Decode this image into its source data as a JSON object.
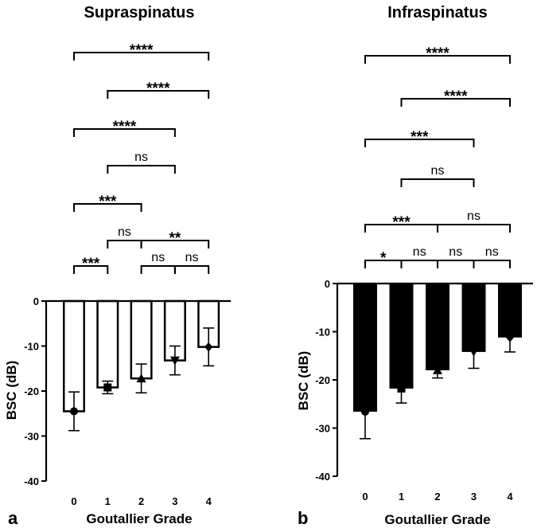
{
  "chart_data": [
    {
      "panel_label": "a",
      "type": "bar",
      "title": "Supraspinatus",
      "xlabel": "Goutallier Grade",
      "ylabel": "BSC (dB)",
      "categories": [
        "0",
        "1",
        "2",
        "3",
        "4"
      ],
      "values": [
        -24.5,
        -19.2,
        -17.2,
        -13.2,
        -10.2
      ],
      "error": [
        4.3,
        1.4,
        3.2,
        3.2,
        4.2
      ],
      "markers": [
        "circle",
        "square",
        "triangle",
        "triangle-down",
        "diamond"
      ],
      "yticks": [
        "0",
        "-10",
        "-20",
        "-30",
        "-40"
      ],
      "ylim": [
        -40,
        0
      ],
      "bar_fill": "#ffffff",
      "bar_stroke": "#000000",
      "comparisons": [
        {
          "groups": [
            0,
            1
          ],
          "level": 1,
          "label": "***"
        },
        {
          "groups": [
            2,
            3
          ],
          "level": 1,
          "label": "ns"
        },
        {
          "groups": [
            3,
            4
          ],
          "level": 1,
          "label": "ns"
        },
        {
          "groups": [
            1,
            2
          ],
          "level": 2,
          "label": "ns"
        },
        {
          "groups": [
            2,
            4
          ],
          "level": 2,
          "label": "**"
        },
        {
          "groups": [
            0,
            2
          ],
          "level": 3,
          "label": "***"
        },
        {
          "groups": [
            1,
            3
          ],
          "level": 4,
          "label": "ns"
        },
        {
          "groups": [
            0,
            3
          ],
          "level": 5,
          "label": "****"
        },
        {
          "groups": [
            1,
            4
          ],
          "level": 6,
          "label": "****"
        },
        {
          "groups": [
            0,
            4
          ],
          "level": 7,
          "label": "****"
        }
      ]
    },
    {
      "panel_label": "b",
      "type": "bar",
      "title": "Infraspinatus",
      "xlabel": "Goutallier Grade",
      "ylabel": "BSC (dB)",
      "categories": [
        "0",
        "1",
        "2",
        "3",
        "4"
      ],
      "values": [
        -26.6,
        -21.8,
        -18.0,
        -14.2,
        -11.2
      ],
      "error": [
        5.6,
        3.0,
        1.6,
        3.4,
        3.0
      ],
      "markers": [
        "circle",
        "square",
        "triangle",
        "triangle-down",
        "diamond"
      ],
      "yticks": [
        "0",
        "-10",
        "-20",
        "-30",
        "-40"
      ],
      "ylim": [
        -40,
        0
      ],
      "bar_fill": "#000000",
      "bar_stroke": "#000000",
      "comparisons": [
        {
          "groups": [
            0,
            1
          ],
          "level": 1,
          "label": "*"
        },
        {
          "groups": [
            1,
            2
          ],
          "level": 1,
          "label": "ns"
        },
        {
          "groups": [
            2,
            3
          ],
          "level": 1,
          "label": "ns"
        },
        {
          "groups": [
            3,
            4
          ],
          "level": 1,
          "label": "ns"
        },
        {
          "groups": [
            0,
            2
          ],
          "level": 2,
          "label": "***"
        },
        {
          "groups": [
            2,
            4
          ],
          "level": 2,
          "label": "ns"
        },
        {
          "groups": [
            1,
            3
          ],
          "level": 3,
          "label": "ns"
        },
        {
          "groups": [
            0,
            3
          ],
          "level": 4,
          "label": "***"
        },
        {
          "groups": [
            1,
            4
          ],
          "level": 5,
          "label": "****"
        },
        {
          "groups": [
            0,
            4
          ],
          "level": 6,
          "label": "****"
        }
      ]
    }
  ]
}
